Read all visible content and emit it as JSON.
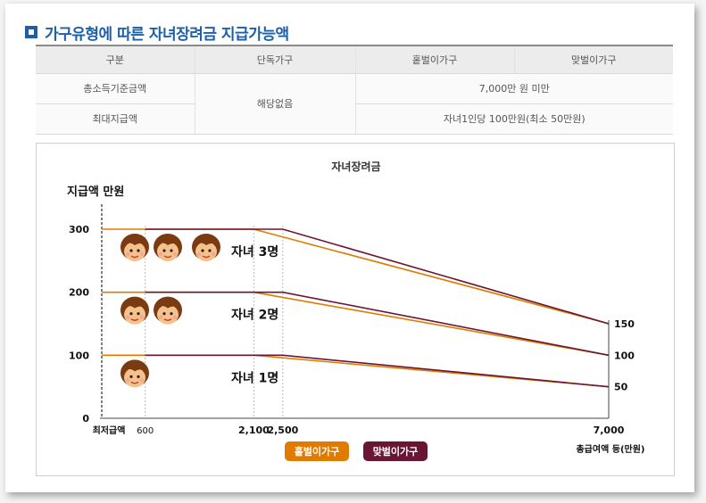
{
  "header": {
    "title": "가구유형에 따른 자녀장려금 지급가능액"
  },
  "table": {
    "columns": [
      "구분",
      "단독가구",
      "홑벌이가구",
      "맞벌이가구"
    ],
    "rows": [
      {
        "label": "총소득기준금액",
        "single": "해당없음",
        "couple": "7,000만 원 미만"
      },
      {
        "label": "최대지급액",
        "couple": "자녀1인당 100만원(최소 50만원)"
      }
    ]
  },
  "chart_data": {
    "type": "line",
    "title": "자녀장려금",
    "ylabel": "지급액 만원",
    "xlabel": "총급여액 등(만원)",
    "x_axis_start_label": "최저급액",
    "xlim": [
      0,
      7000
    ],
    "ylim": [
      0,
      300
    ],
    "x_ticks": [
      {
        "value": 600,
        "label": "600"
      },
      {
        "value": 2100,
        "label": "2,100"
      },
      {
        "value": 2500,
        "label": "2,500"
      },
      {
        "value": 7000,
        "label": "7,000"
      }
    ],
    "y_ticks": [
      {
        "value": 0,
        "label": "0"
      },
      {
        "value": 100,
        "label": "100"
      },
      {
        "value": 200,
        "label": "200"
      },
      {
        "value": 300,
        "label": "300"
      }
    ],
    "end_labels": [
      {
        "value": 150,
        "label": "150"
      },
      {
        "value": 100,
        "label": "100"
      },
      {
        "value": 50,
        "label": "50"
      }
    ],
    "group_labels": [
      {
        "children": 3,
        "y": 300,
        "label": "자녀 3명"
      },
      {
        "children": 2,
        "y": 200,
        "label": "자녀 2명"
      },
      {
        "children": 1,
        "y": 100,
        "label": "자녀 1명"
      }
    ],
    "series": [
      {
        "name": "홑벌이가구",
        "color": "#e07b00",
        "lines": [
          {
            "points": [
              [
                0,
                300
              ],
              [
                2100,
                300
              ],
              [
                7000,
                150
              ]
            ]
          },
          {
            "points": [
              [
                0,
                200
              ],
              [
                2100,
                200
              ],
              [
                7000,
                100
              ]
            ]
          },
          {
            "points": [
              [
                0,
                100
              ],
              [
                2100,
                100
              ],
              [
                7000,
                50
              ]
            ]
          }
        ]
      },
      {
        "name": "맞벌이가구",
        "color": "#6b1534",
        "lines": [
          {
            "points": [
              [
                600,
                300
              ],
              [
                2500,
                300
              ],
              [
                7000,
                150
              ]
            ]
          },
          {
            "points": [
              [
                600,
                200
              ],
              [
                2500,
                200
              ],
              [
                7000,
                100
              ]
            ]
          },
          {
            "points": [
              [
                600,
                100
              ],
              [
                2500,
                100
              ],
              [
                7000,
                50
              ]
            ]
          }
        ]
      }
    ],
    "legend": [
      {
        "name": "홑벌이가구",
        "color": "#e07b00"
      },
      {
        "name": "맞벌이가구",
        "color": "#6b1534"
      }
    ],
    "legend_position": "bottom-center"
  }
}
